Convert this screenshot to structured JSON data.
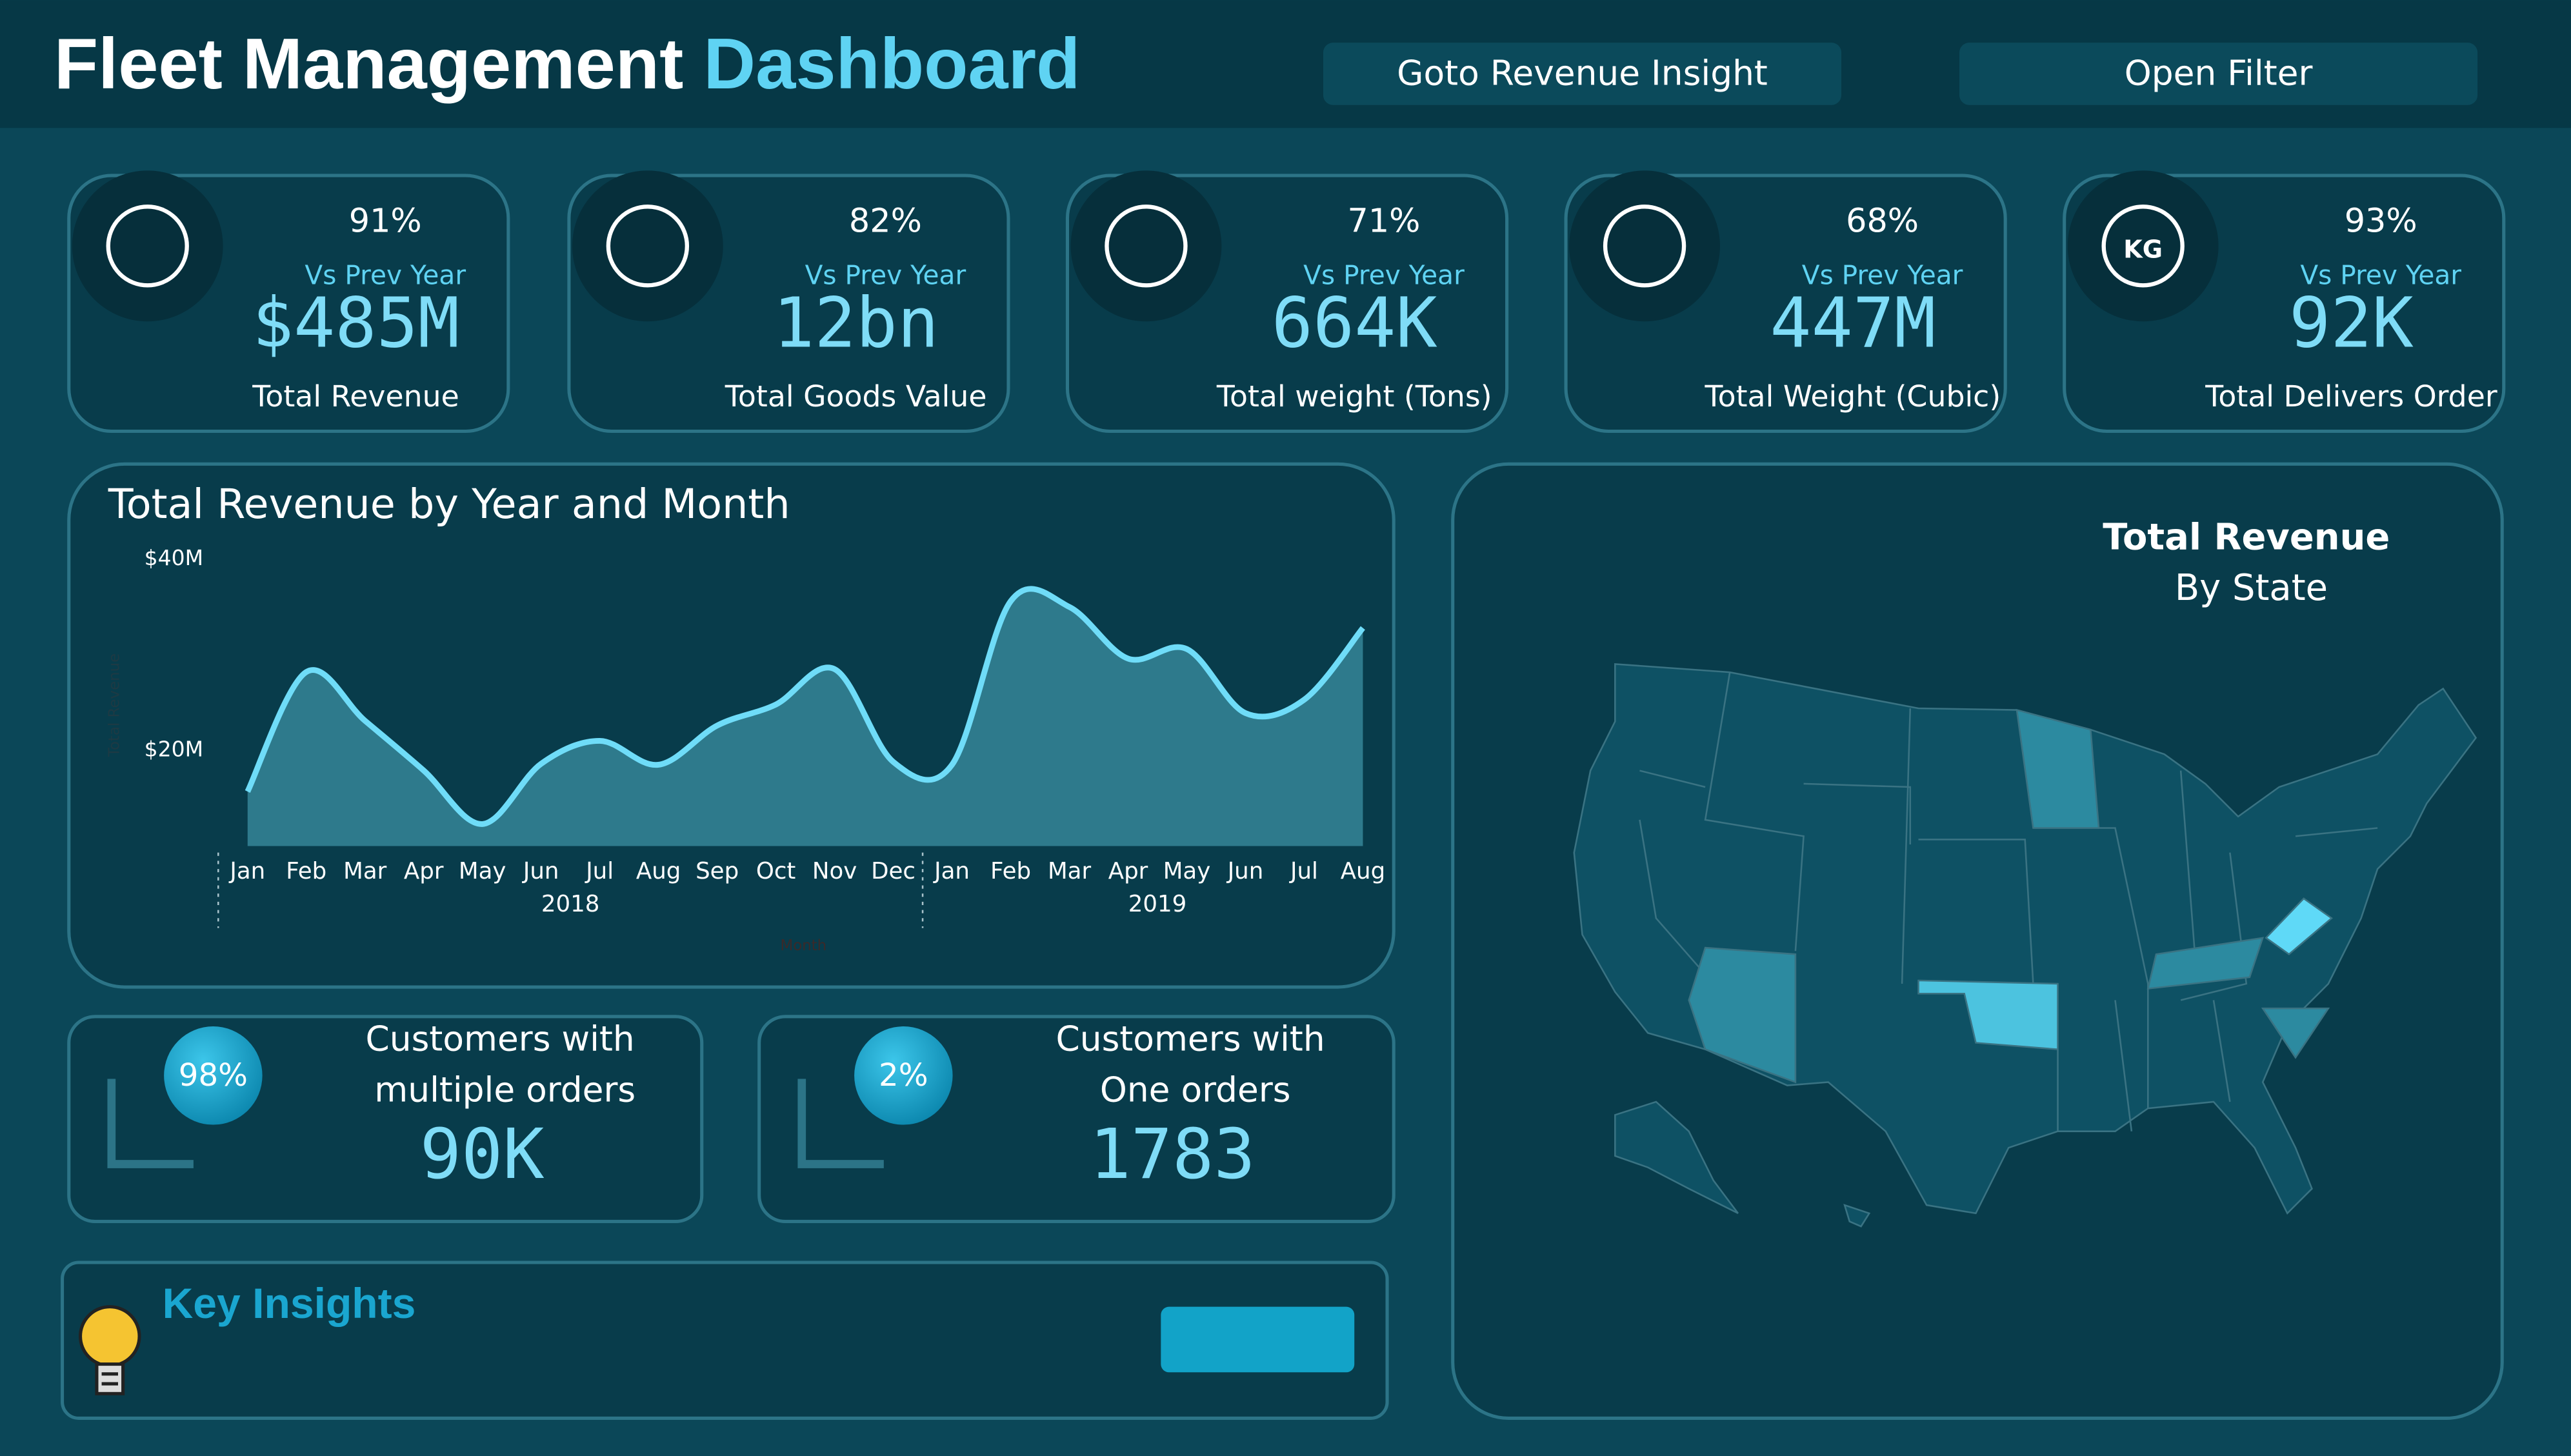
{
  "header": {
    "title_main": "Fleet Management",
    "title_accent": "Dashboard",
    "buttons": [
      "Goto Revenue Insight",
      "Open Filter"
    ]
  },
  "kpis": [
    {
      "change": "91%",
      "compare": "Vs Prev Year",
      "value": "$485M",
      "label": "Total Revenue"
    },
    {
      "change": "82%",
      "compare": "Vs Prev Year",
      "value": "12bn",
      "label": "Total Goods Value"
    },
    {
      "change": "71%",
      "compare": "Vs Prev Year",
      "value": "664K",
      "label": "Total weight (Tons)"
    },
    {
      "change": "68%",
      "compare": "Vs Prev Year",
      "value": "447M",
      "label": "Total Weight (Cubic)"
    },
    {
      "change": "93%",
      "compare": "Vs Prev Year",
      "value": "92K",
      "label": "Total Delivers Order",
      "icon_text": "KG"
    }
  ],
  "chart_data": {
    "type": "area",
    "title": "Total Revenue by Year and Month",
    "y_label": "Total Revenue",
    "x_label": "Month",
    "categories": [
      "Jan",
      "Feb",
      "Mar",
      "Apr",
      "May",
      "Jun",
      "Jul",
      "Aug",
      "Sep",
      "Oct",
      "Nov",
      "Dec",
      "Jan",
      "Feb",
      "Mar",
      "Apr",
      "May",
      "Jun",
      "Jul",
      "Aug"
    ],
    "year_groups": [
      {
        "label": "2018",
        "count": 12
      },
      {
        "label": "2019",
        "count": 8
      }
    ],
    "series": [
      {
        "name": "Total Revenue",
        "color": "#6fdcf8",
        "values": [
          15.7,
          28.2,
          23.1,
          17.9,
          12.3,
          18.6,
          21.0,
          18.5,
          22.6,
          24.8,
          28.5,
          18.8,
          18.5,
          35.6,
          35.0,
          29.6,
          30.6,
          23.9,
          25.3,
          32.8
        ]
      }
    ],
    "ylim": [
      10,
      40
    ],
    "yticks": [
      {
        "value": 20,
        "label": "$20M"
      },
      {
        "value": 40,
        "label": "$40M"
      }
    ],
    "grid": false
  },
  "customers": [
    {
      "share": "98%",
      "line1": "Customers with",
      "line2": "multiple orders",
      "value": "90K"
    },
    {
      "share": "2%",
      "line1": "Customers with",
      "line2": "One orders",
      "value": "1783"
    }
  ],
  "insights": {
    "title": "Key Insights"
  },
  "map": {
    "title": "Total Revenue",
    "subtitle": "By State"
  }
}
